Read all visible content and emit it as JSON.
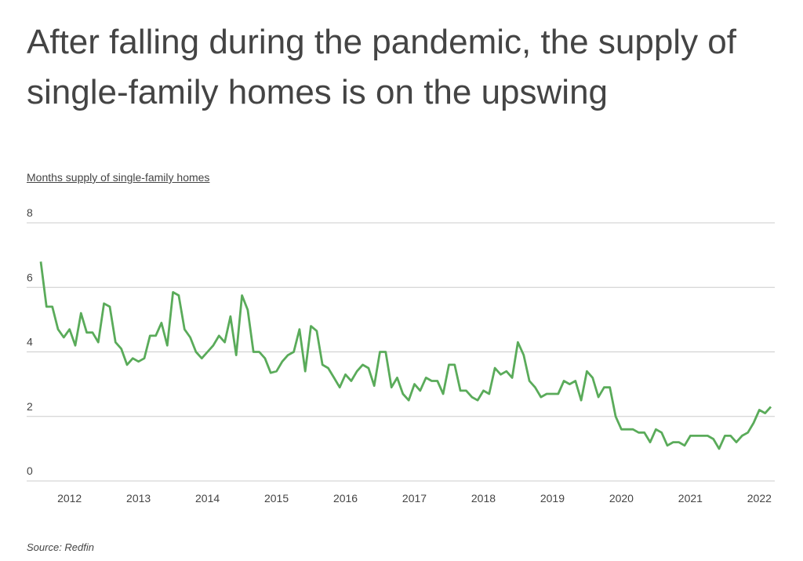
{
  "chart_data": {
    "type": "line",
    "title": "After falling during the pandemic, the supply of single-family homes is on the upswing",
    "y_axis_label": "Months supply of single-family homes",
    "source": "Source:  Redfin",
    "categories": [
      null,
      null,
      null,
      null,
      null,
      "2012",
      null,
      null,
      null,
      null,
      null,
      null,
      null,
      null,
      null,
      null,
      null,
      "2013",
      null,
      null,
      null,
      null,
      null,
      null,
      null,
      null,
      null,
      null,
      null,
      "2014",
      null,
      null,
      null,
      null,
      null,
      null,
      null,
      null,
      null,
      null,
      null,
      "2015",
      null,
      null,
      null,
      null,
      null,
      null,
      null,
      null,
      null,
      null,
      null,
      "2016",
      null,
      null,
      null,
      null,
      null,
      null,
      null,
      null,
      null,
      null,
      null,
      "2017",
      null,
      null,
      null,
      null,
      null,
      null,
      null,
      null,
      null,
      null,
      null,
      "2018",
      null,
      null,
      null,
      null,
      null,
      null,
      null,
      null,
      null,
      null,
      null,
      "2019",
      null,
      null,
      null,
      null,
      null,
      null,
      null,
      null,
      null,
      null,
      null,
      "2020",
      null,
      null,
      null,
      null,
      null,
      null,
      null,
      null,
      null,
      null,
      null,
      "2021",
      null,
      null,
      null,
      null,
      null,
      null,
      null,
      null,
      null,
      null,
      null,
      "2022",
      null,
      null
    ],
    "series": [
      {
        "name": "Months supply",
        "color": "#5aab5a",
        "values": [
          6.8,
          5.4,
          5.4,
          4.7,
          4.45,
          4.7,
          4.2,
          5.2,
          4.6,
          4.6,
          4.3,
          5.5,
          5.4,
          4.3,
          4.1,
          3.6,
          3.8,
          3.7,
          3.8,
          4.5,
          4.5,
          4.9,
          4.2,
          5.85,
          5.75,
          4.7,
          4.45,
          4.0,
          3.8,
          4.0,
          4.2,
          4.5,
          4.3,
          5.1,
          3.9,
          5.75,
          5.3,
          4.0,
          4.0,
          3.8,
          3.35,
          3.4,
          3.7,
          3.9,
          4.0,
          4.7,
          3.4,
          4.8,
          4.65,
          3.6,
          3.5,
          3.2,
          2.9,
          3.3,
          3.1,
          3.4,
          3.6,
          3.5,
          2.95,
          4.0,
          4.0,
          2.9,
          3.2,
          2.7,
          2.5,
          3.0,
          2.8,
          3.2,
          3.1,
          3.1,
          2.7,
          3.6,
          3.6,
          2.8,
          2.8,
          2.6,
          2.5,
          2.8,
          2.7,
          3.5,
          3.3,
          3.4,
          3.2,
          4.3,
          3.9,
          3.1,
          2.9,
          2.6,
          2.7,
          2.7,
          2.7,
          3.1,
          3.0,
          3.1,
          2.5,
          3.4,
          3.2,
          2.6,
          2.9,
          2.9,
          2.0,
          1.6,
          1.6,
          1.6,
          1.5,
          1.5,
          1.2,
          1.6,
          1.5,
          1.1,
          1.2,
          1.2,
          1.1,
          1.4,
          1.4,
          1.4,
          1.4,
          1.3,
          1.0,
          1.4,
          1.4,
          1.2,
          1.4,
          1.5,
          1.8,
          2.2,
          2.1,
          2.3
        ]
      }
    ],
    "ylim": [
      0,
      8
    ],
    "yticks": [
      0,
      2,
      4,
      6,
      8
    ],
    "grid": true
  }
}
